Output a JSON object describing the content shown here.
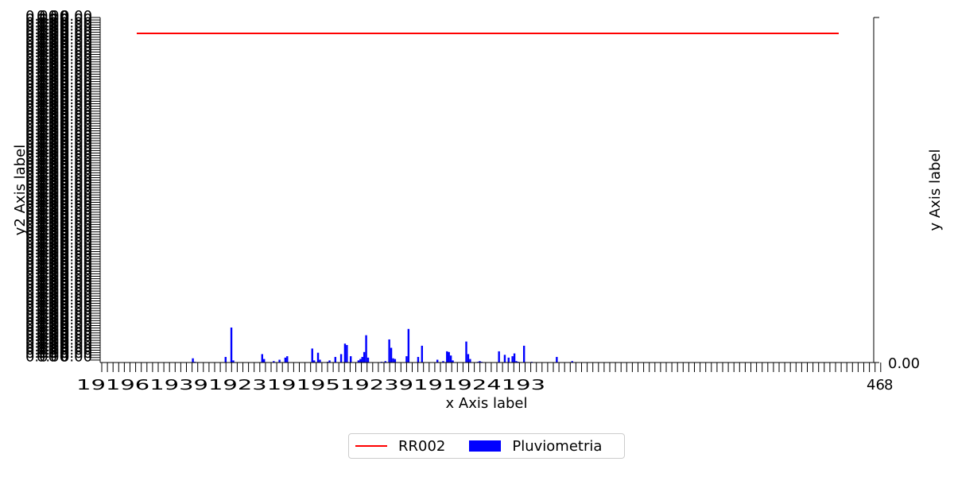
{
  "colors": {
    "line": "#ff0000",
    "bar": "#0000ff",
    "axis": "#000000"
  },
  "chart_data": {
    "type": "bar",
    "xlabel": "x Axis label",
    "ylabel": "y Axis label",
    "y2label": "y2 Axis label",
    "right_axis_tick_label": "0.00",
    "x_tick_overlap_text": "19196193919231919519239191924193",
    "x_tick_last_label": "46",
    "x_tick_last_label_b": "8",
    "left_axis_tick_text": "0.00",
    "ylim_right": [
      0,
      1
    ],
    "grid": false,
    "legend_placement": "bottom-center",
    "series": [
      {
        "name": "RR002",
        "type": "line",
        "y_level": 0.954
      },
      {
        "name": "Pluviometria",
        "type": "bar",
        "values": [
          0,
          0,
          0,
          0,
          0,
          0,
          0,
          0,
          0,
          0,
          0,
          0,
          0,
          0,
          0,
          0,
          0,
          0,
          0,
          0,
          0,
          0,
          0,
          0,
          0,
          0,
          0,
          0,
          0,
          0,
          0,
          0,
          0,
          0,
          0,
          0,
          0,
          0,
          0,
          0,
          0,
          0,
          0,
          0,
          0,
          0,
          1.2,
          0.2,
          0,
          0,
          0,
          0,
          0,
          0,
          0,
          0,
          0,
          0,
          0,
          0,
          0,
          0,
          0,
          1.6,
          0,
          0,
          10,
          0.6,
          0,
          0,
          0,
          0,
          0,
          0,
          0,
          0,
          0,
          0,
          0,
          0,
          0,
          0,
          2.4,
          1,
          0,
          0,
          0,
          0,
          0.4,
          0,
          0,
          0.8,
          0,
          0,
          1.4,
          1.8,
          0,
          0,
          0,
          0,
          0,
          0,
          0,
          0,
          0,
          0,
          0,
          0,
          4,
          0.6,
          0,
          2.8,
          0.8,
          0,
          0,
          0,
          0.2,
          0.6,
          0,
          0,
          1.6,
          0,
          0,
          2.4,
          0,
          5.4,
          5,
          0,
          1.8,
          0,
          0,
          0,
          0.6,
          1,
          1.6,
          3,
          7.8,
          1.4,
          0,
          0,
          0,
          0,
          0,
          0,
          0.2,
          0,
          0.4,
          0,
          6.6,
          4.2,
          1.2,
          1,
          0,
          0,
          0,
          0,
          0,
          1.8,
          9.6,
          0,
          0,
          0,
          0,
          1.6,
          0,
          4.8,
          0,
          0,
          0,
          0,
          0,
          0,
          0,
          0.8,
          0,
          0,
          0.4,
          0,
          3.2,
          3,
          2,
          0.6,
          0,
          0,
          0,
          0,
          0,
          0,
          6,
          2.4,
          1,
          0,
          0,
          0,
          0.2,
          0.4,
          0.2,
          0,
          0,
          0,
          0,
          0,
          0,
          0,
          0,
          3.2,
          0,
          0,
          2.2,
          0,
          1.4,
          0,
          1.8,
          2.6,
          0.4,
          0.2,
          0,
          0,
          4.8,
          0,
          0,
          0,
          0.2,
          0,
          0,
          0,
          0,
          0,
          0,
          0,
          0,
          0,
          0,
          0,
          0,
          1.6,
          0,
          0,
          0,
          0,
          0,
          0,
          0,
          0.4,
          0,
          0,
          0,
          0,
          0,
          0,
          0,
          0,
          0,
          0,
          0,
          0,
          0,
          0,
          0,
          0,
          0,
          0,
          0,
          0,
          0,
          0,
          0,
          0,
          0,
          0,
          0,
          0,
          0,
          0,
          0,
          0,
          0,
          0,
          0,
          0,
          0,
          0,
          0,
          0,
          0,
          0,
          0,
          0,
          0,
          0,
          0,
          0,
          0,
          0,
          0,
          0,
          0,
          0,
          0,
          0,
          0,
          0,
          0,
          0,
          0,
          0,
          0,
          0,
          0,
          0,
          0,
          0,
          0,
          0,
          0,
          0,
          0,
          0,
          0,
          0,
          0,
          0,
          0,
          0,
          0,
          0,
          0,
          0,
          0,
          0,
          0,
          0,
          0,
          0,
          0,
          0,
          0,
          0,
          0,
          0,
          0,
          0,
          0,
          0,
          0,
          0,
          0,
          0,
          0,
          0,
          0,
          0,
          0,
          0,
          0,
          0,
          0,
          0,
          0,
          0,
          0,
          0,
          0,
          0,
          0,
          0,
          0,
          0,
          0,
          0,
          0,
          0,
          0,
          0,
          0,
          0,
          0,
          0,
          0,
          0,
          0,
          0,
          0,
          0
        ]
      }
    ]
  }
}
